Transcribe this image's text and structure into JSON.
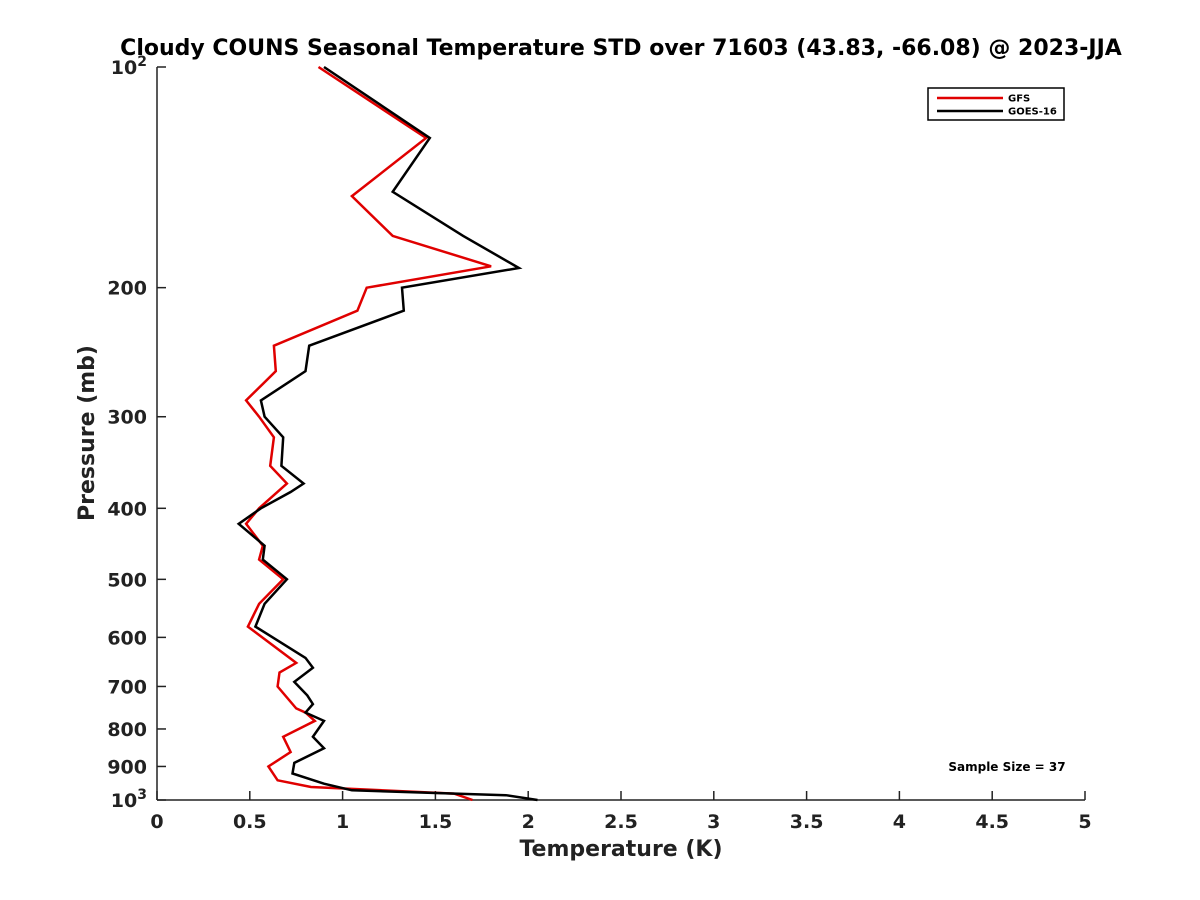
{
  "chart_data": {
    "type": "line",
    "title": "Cloudy COUNS Seasonal Temperature STD over 71603 (43.83, -66.08) @ 2023-JJA",
    "xlabel": "Temperature (K)",
    "ylabel": "Pressure (mb)",
    "xlim": [
      0,
      5
    ],
    "ylim": [
      100,
      1000
    ],
    "yscale": "log",
    "y_reversed": true,
    "x_ticks": [
      0,
      0.5,
      1,
      1.5,
      2,
      2.5,
      3,
      3.5,
      4,
      4.5,
      5
    ],
    "x_tick_labels": [
      "0",
      "0.5",
      "1",
      "1.5",
      "2",
      "2.5",
      "3",
      "3.5",
      "4",
      "4.5",
      "5"
    ],
    "y_ticks": [
      100,
      200,
      300,
      400,
      500,
      600,
      700,
      800,
      900,
      1000
    ],
    "y_tick_labels": [
      {
        "base": "10",
        "exp": "2"
      },
      {
        "base": "200",
        "exp": ""
      },
      {
        "base": "300",
        "exp": ""
      },
      {
        "base": "400",
        "exp": ""
      },
      {
        "base": "500",
        "exp": ""
      },
      {
        "base": "600",
        "exp": ""
      },
      {
        "base": "700",
        "exp": ""
      },
      {
        "base": "800",
        "exp": ""
      },
      {
        "base": "900",
        "exp": ""
      },
      {
        "base": "10",
        "exp": "3"
      }
    ],
    "legend_position": "top-right",
    "grid": false,
    "annotation": "Sample Size = 37",
    "series": [
      {
        "name": "GFS",
        "color": "#e00000",
        "points": [
          [
            0.87,
            100
          ],
          [
            1.45,
            125
          ],
          [
            1.05,
            150
          ],
          [
            1.27,
            170
          ],
          [
            1.8,
            187
          ],
          [
            1.13,
            200
          ],
          [
            1.08,
            215
          ],
          [
            0.63,
            240
          ],
          [
            0.64,
            260
          ],
          [
            0.48,
            285
          ],
          [
            0.55,
            300
          ],
          [
            0.63,
            320
          ],
          [
            0.61,
            350
          ],
          [
            0.7,
            370
          ],
          [
            0.55,
            400
          ],
          [
            0.48,
            420
          ],
          [
            0.57,
            450
          ],
          [
            0.55,
            470
          ],
          [
            0.68,
            500
          ],
          [
            0.55,
            540
          ],
          [
            0.49,
            580
          ],
          [
            0.75,
            650
          ],
          [
            0.66,
            670
          ],
          [
            0.65,
            700
          ],
          [
            0.75,
            750
          ],
          [
            0.8,
            760
          ],
          [
            0.85,
            780
          ],
          [
            0.68,
            820
          ],
          [
            0.72,
            860
          ],
          [
            0.6,
            900
          ],
          [
            0.65,
            940
          ],
          [
            0.83,
            960
          ],
          [
            1.6,
            980
          ],
          [
            1.7,
            1000
          ]
        ]
      },
      {
        "name": "GOES-16",
        "color": "#000000",
        "points": [
          [
            0.9,
            100
          ],
          [
            1.47,
            125
          ],
          [
            1.27,
            148
          ],
          [
            1.65,
            170
          ],
          [
            1.95,
            188
          ],
          [
            1.32,
            200
          ],
          [
            1.33,
            215
          ],
          [
            0.82,
            240
          ],
          [
            0.8,
            260
          ],
          [
            0.56,
            285
          ],
          [
            0.58,
            300
          ],
          [
            0.68,
            320
          ],
          [
            0.67,
            350
          ],
          [
            0.79,
            370
          ],
          [
            0.72,
            380
          ],
          [
            0.56,
            400
          ],
          [
            0.44,
            420
          ],
          [
            0.58,
            450
          ],
          [
            0.57,
            470
          ],
          [
            0.7,
            500
          ],
          [
            0.58,
            540
          ],
          [
            0.53,
            580
          ],
          [
            0.8,
            640
          ],
          [
            0.84,
            660
          ],
          [
            0.74,
            690
          ],
          [
            0.81,
            720
          ],
          [
            0.84,
            740
          ],
          [
            0.8,
            760
          ],
          [
            0.9,
            780
          ],
          [
            0.84,
            820
          ],
          [
            0.9,
            850
          ],
          [
            0.74,
            890
          ],
          [
            0.73,
            920
          ],
          [
            0.9,
            950
          ],
          [
            1.05,
            970
          ],
          [
            1.88,
            985
          ],
          [
            2.05,
            1000
          ]
        ]
      }
    ]
  }
}
